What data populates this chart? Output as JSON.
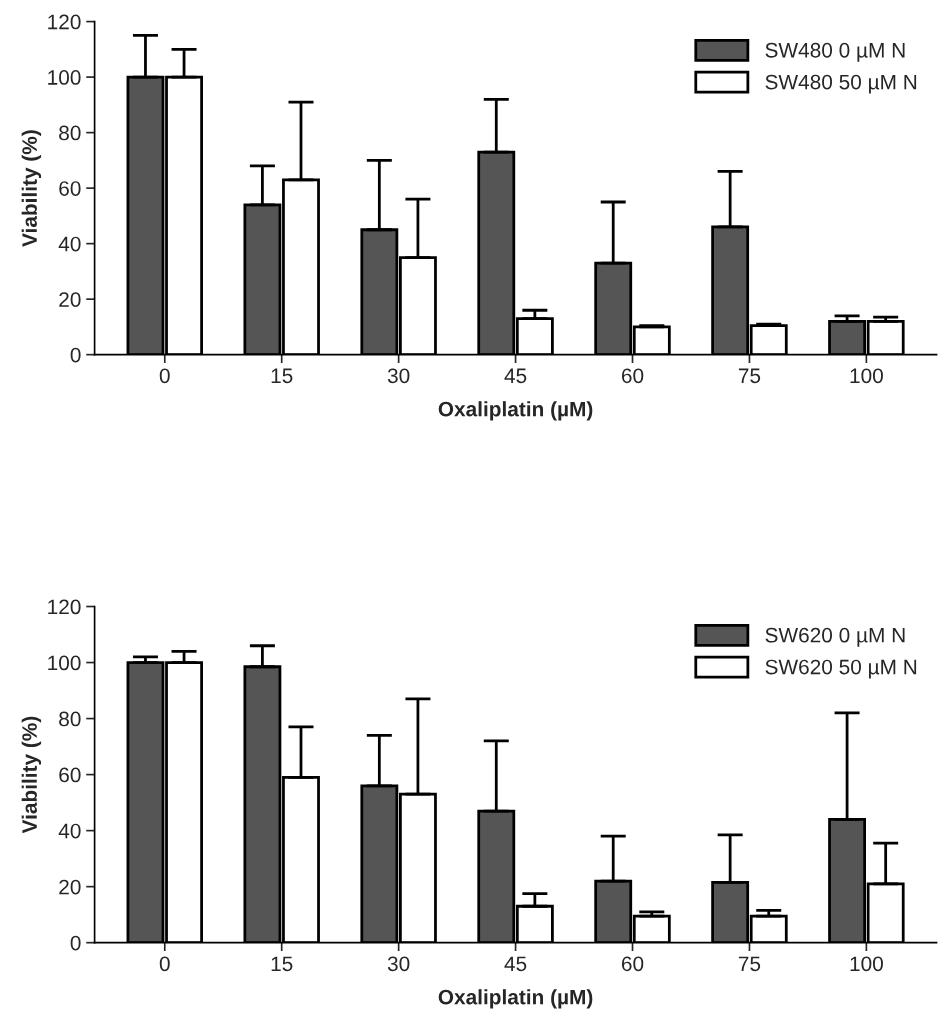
{
  "chart_data": [
    {
      "type": "bar",
      "xlabel": "Oxaliplatin (µM)",
      "ylabel": "Viability (%)",
      "categories": [
        "0",
        "15",
        "30",
        "45",
        "60",
        "75",
        "100"
      ],
      "ylim": [
        0,
        120
      ],
      "yticks": [
        0,
        20,
        40,
        60,
        80,
        100,
        120
      ],
      "grid": false,
      "legend": "top right",
      "series": [
        {
          "name": "SW480 0 µM N",
          "color": "#555555",
          "values": [
            100,
            54,
            45,
            73,
            33,
            46,
            12
          ],
          "errors": [
            [
              100,
              115
            ],
            [
              54,
              68
            ],
            [
              45,
              70
            ],
            [
              73,
              92
            ],
            [
              33,
              55
            ],
            [
              46,
              66
            ],
            [
              12,
              14
            ]
          ]
        },
        {
          "name": "SW480 50 µM N",
          "color": "#ffffff",
          "values": [
            100,
            63,
            35,
            13,
            10,
            10.5,
            12
          ],
          "errors": [
            [
              100,
              110
            ],
            [
              63,
              91
            ],
            [
              35,
              56
            ],
            [
              13,
              16
            ],
            [
              10,
              10.5
            ],
            [
              10.5,
              11
            ],
            [
              12,
              13.5
            ]
          ]
        }
      ]
    },
    {
      "type": "bar",
      "xlabel": "Oxaliplatin (µM)",
      "ylabel": "Viability (%)",
      "categories": [
        "0",
        "15",
        "30",
        "45",
        "60",
        "75",
        "100"
      ],
      "ylim": [
        0,
        120
      ],
      "yticks": [
        0,
        20,
        40,
        60,
        80,
        100,
        120
      ],
      "grid": false,
      "legend": "top right",
      "series": [
        {
          "name": "SW620 0 µM N",
          "color": "#555555",
          "values": [
            100,
            98.5,
            56,
            47,
            22,
            21.5,
            44
          ],
          "errors": [
            [
              100,
              102
            ],
            [
              98.5,
              106
            ],
            [
              56,
              74
            ],
            [
              47,
              72
            ],
            [
              22,
              38
            ],
            [
              21.5,
              38.5
            ],
            [
              44,
              82
            ]
          ]
        },
        {
          "name": "SW620 50 µM N",
          "color": "#ffffff",
          "values": [
            100,
            59,
            53,
            13,
            9.5,
            9.5,
            21
          ],
          "errors": [
            [
              100,
              104
            ],
            [
              59,
              77
            ],
            [
              53,
              87
            ],
            [
              13,
              17.5
            ],
            [
              9.5,
              11
            ],
            [
              9.5,
              11.5
            ],
            [
              21,
              35.5
            ]
          ]
        }
      ]
    }
  ]
}
